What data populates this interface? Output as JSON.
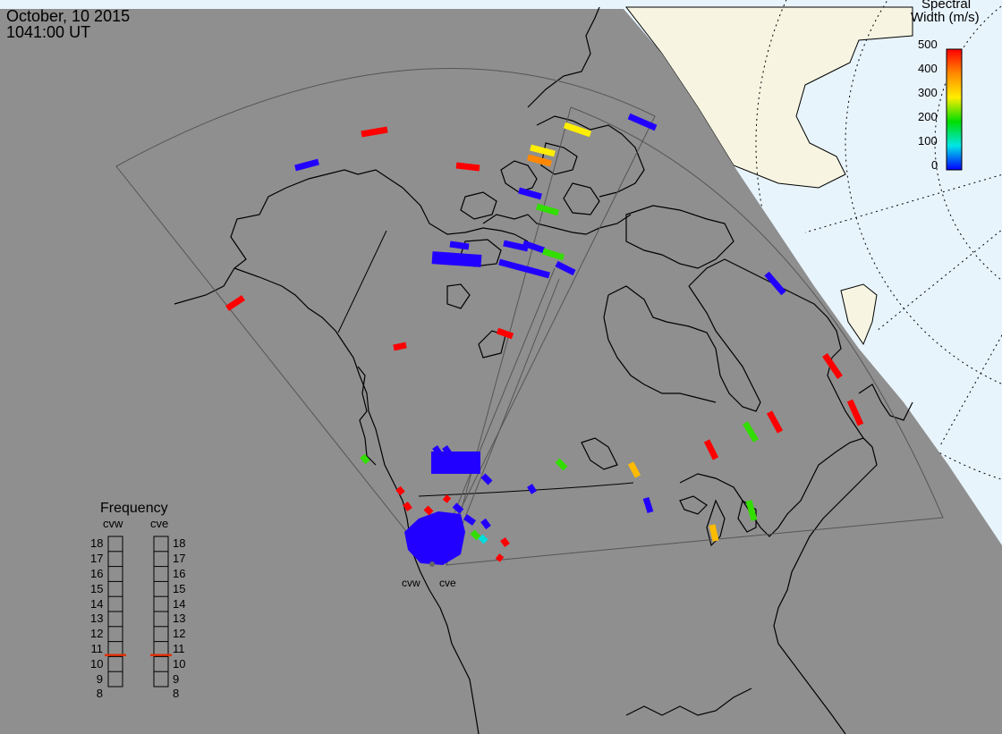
{
  "header": {
    "date": "October, 10 2015",
    "time": "1041:00 UT"
  },
  "colorbar": {
    "title_line1": "Spectral",
    "title_line2": "Width (m/s)",
    "ticks": [
      "500",
      "400",
      "300",
      "200",
      "100",
      "0"
    ],
    "vmin": 0,
    "vmax": 500
  },
  "frequency": {
    "title": "Frequency",
    "left_radar": "cvw",
    "right_radar": "cve",
    "scale": [
      "18",
      "17",
      "16",
      "15",
      "14",
      "13",
      "12",
      "11",
      "10",
      "9",
      "8"
    ],
    "cvw_mhz": 10.6,
    "cve_mhz": 10.6
  },
  "radars": [
    {
      "name": "cvw"
    },
    {
      "name": "cve"
    }
  ],
  "colors": {
    "sea": "#e8f4fc",
    "night": "#8f8f8f",
    "land_day": "#f7f5e2",
    "coast": "#000000",
    "fov": "#555555",
    "grid": "#000000",
    "indicator": "#e03000"
  },
  "scatter_width_ms": {
    "red": 500,
    "orange": 360,
    "yellow": 300,
    "green": 210,
    "blue": 20
  }
}
